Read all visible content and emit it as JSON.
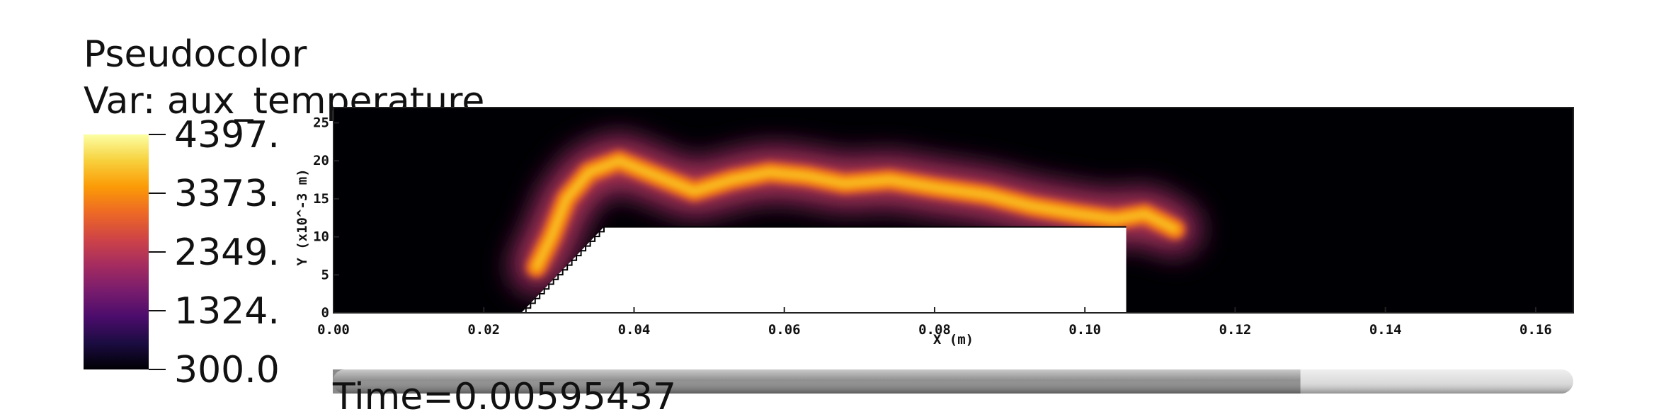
{
  "legend": {
    "title": "Pseudocolor",
    "variable_label": "Var: aux_temperature",
    "ticks": [
      "4397.",
      "3373.",
      "2349.",
      "1324.",
      "300.0"
    ],
    "colormap": [
      "#000004",
      "#1b0c41",
      "#4a0c6b",
      "#781c6d",
      "#a52c60",
      "#cf4446",
      "#ed6925",
      "#fb9b06",
      "#f7d13d",
      "#fcffa4"
    ]
  },
  "time_label": "Time=0.00595437",
  "time_slider": {
    "progress": 0.78,
    "track_color": "#8a8a8a",
    "remaining_color": "#dcdcdc"
  },
  "chart_data": {
    "type": "heatmap",
    "variable": "aux_temperature",
    "value_range": [
      300.0,
      4397.0
    ],
    "xlabel": "X (m)",
    "ylabel": "Y (x10^-3 m)",
    "xlim": [
      0.0,
      0.165
    ],
    "ylim": [
      0,
      27
    ],
    "x_ticks": [
      "0.00",
      "0.02",
      "0.04",
      "0.06",
      "0.08",
      "0.10",
      "0.12",
      "0.14",
      "0.16"
    ],
    "y_ticks": [
      "0",
      "5",
      "10",
      "15",
      "20",
      "25"
    ],
    "obstacle": {
      "ramp_start_x": 0.025,
      "ramp_top_x": 0.036,
      "top_y": 11.3,
      "end_x": 0.1055
    },
    "flame_centerline": {
      "x": [
        0.027,
        0.029,
        0.031,
        0.034,
        0.038,
        0.043,
        0.048,
        0.053,
        0.058,
        0.063,
        0.068,
        0.074,
        0.08,
        0.087,
        0.093,
        0.099,
        0.104,
        0.108,
        0.112
      ],
      "y": [
        6,
        10,
        15,
        18.5,
        20,
        18,
        16,
        17.5,
        18.5,
        18,
        17,
        17.5,
        16.5,
        15.5,
        14,
        13,
        12.3,
        13,
        11
      ]
    }
  }
}
